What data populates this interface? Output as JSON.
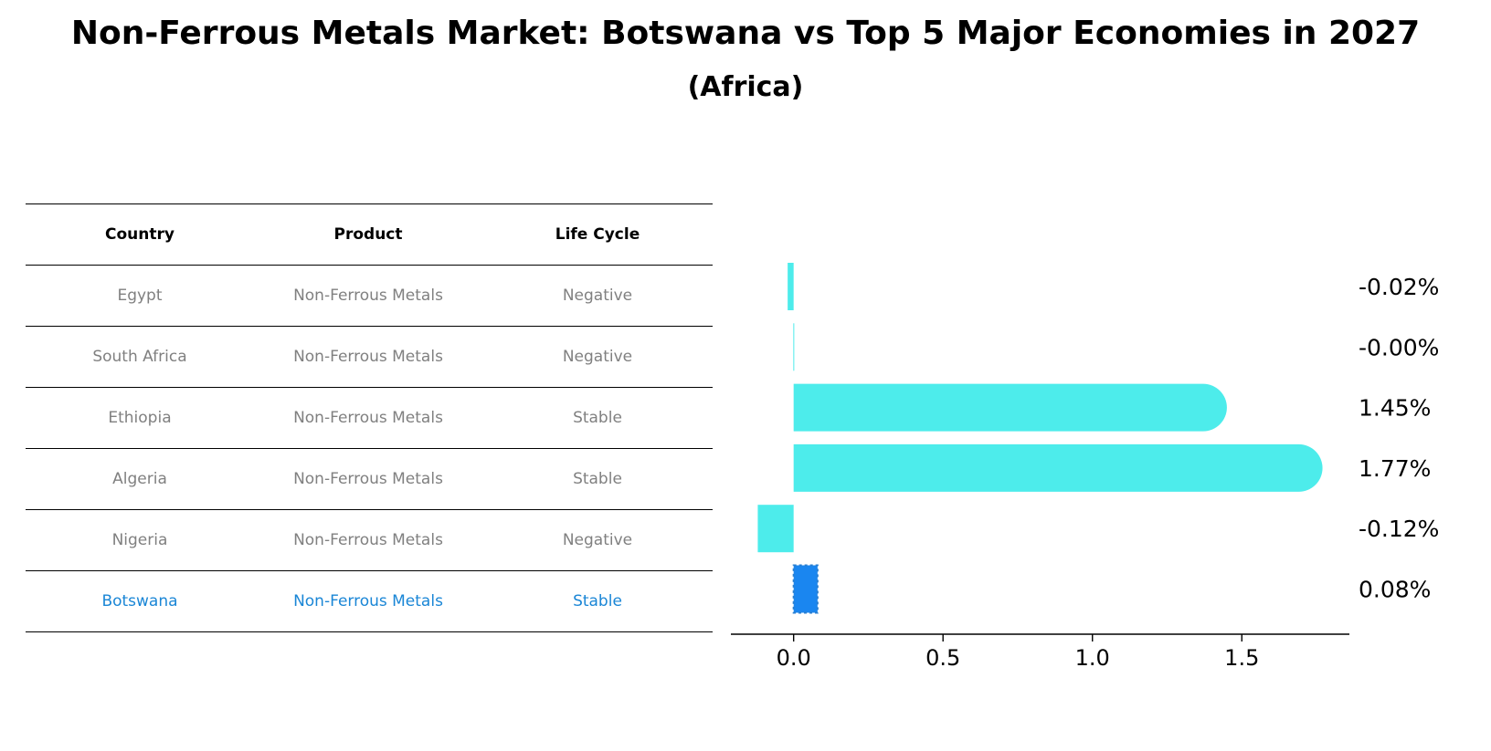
{
  "title": "Non-Ferrous Metals Market: Botswana vs Top 5 Major Economies in 2027",
  "subtitle": "(Africa)",
  "table": {
    "headers": [
      "Country",
      "Product",
      "Life Cycle"
    ],
    "rows": [
      [
        "Egypt",
        "Non-Ferrous Metals",
        "Negative"
      ],
      [
        "South Africa",
        "Non-Ferrous Metals",
        "Negative"
      ],
      [
        "Ethiopia",
        "Non-Ferrous Metals",
        "Stable"
      ],
      [
        "Algeria",
        "Non-Ferrous Metals",
        "Stable"
      ],
      [
        "Nigeria",
        "Non-Ferrous Metals",
        "Negative"
      ],
      [
        "Botswana",
        "Non-Ferrous Metals",
        "Stable"
      ]
    ]
  },
  "chart_data": {
    "type": "bar",
    "orientation": "horizontal",
    "categories": [
      "Egypt",
      "South Africa",
      "Ethiopia",
      "Algeria",
      "Nigeria",
      "Botswana"
    ],
    "values": [
      -0.02,
      -0.001,
      1.45,
      1.77,
      -0.12,
      0.08
    ],
    "value_labels": [
      "-0.02%",
      "-0.00%",
      "1.45%",
      "1.77%",
      "-0.12%",
      "0.08%"
    ],
    "highlight": "Botswana",
    "xlim": [
      -0.21,
      1.86
    ],
    "xticks": [
      0.0,
      0.5,
      1.0,
      1.5
    ],
    "xtick_labels": [
      "0.0",
      "0.5",
      "1.0",
      "1.5"
    ],
    "colors": {
      "bar": "#4deceb",
      "highlight": "#1a86f0",
      "highlight_edge": "#2a7fd0"
    }
  }
}
